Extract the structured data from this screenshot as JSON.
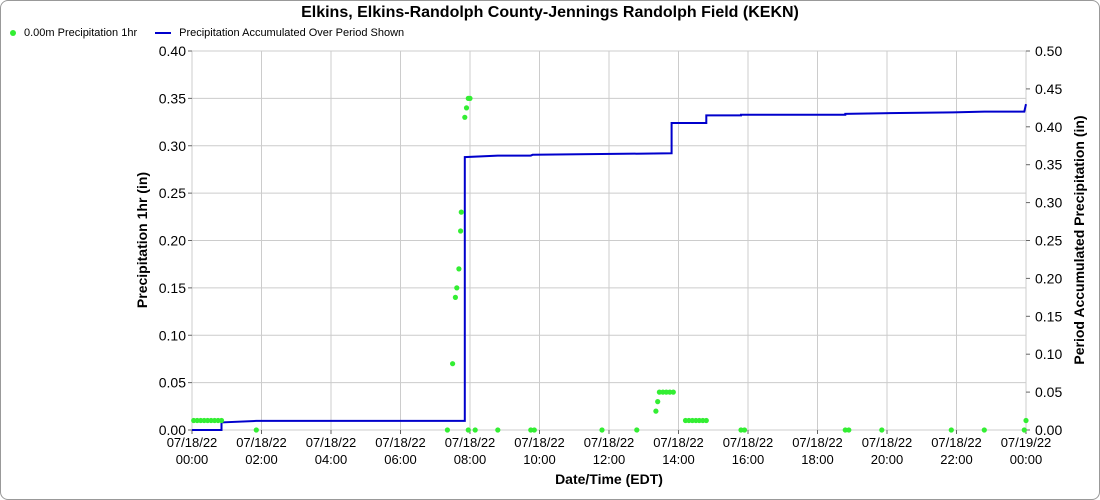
{
  "title": "Elkins, Elkins-Randolph County-Jennings Randolph Field (KEKN)",
  "legend": {
    "points_label": "0.00m Precipitation 1hr",
    "line_label": "Precipitation Accumulated Over Period Shown"
  },
  "colors": {
    "points": "#33ee33",
    "line": "#0000cc",
    "grid": "#cccccc"
  },
  "chart_data": {
    "type": "scatter",
    "title": "Elkins, Elkins-Randolph County-Jennings Randolph Field (KEKN)",
    "xlabel": "Date/Time (EDT)",
    "ylabel": "Precipitation 1hr (in)",
    "y2label": "Period Accumulated Precipitation (in)",
    "x_unit": "hours since 07/18/22 00:00",
    "xlim": [
      0,
      24
    ],
    "ylim": [
      0,
      0.4
    ],
    "y2lim": [
      0,
      0.5
    ],
    "grid": true,
    "legend_position": "top-left",
    "x_ticks": [
      {
        "v": 0,
        "l1": "07/18/22",
        "l2": "00:00"
      },
      {
        "v": 2,
        "l1": "07/18/22",
        "l2": "02:00"
      },
      {
        "v": 4,
        "l1": "07/18/22",
        "l2": "04:00"
      },
      {
        "v": 6,
        "l1": "07/18/22",
        "l2": "06:00"
      },
      {
        "v": 8,
        "l1": "07/18/22",
        "l2": "08:00"
      },
      {
        "v": 10,
        "l1": "07/18/22",
        "l2": "10:00"
      },
      {
        "v": 12,
        "l1": "07/18/22",
        "l2": "12:00"
      },
      {
        "v": 14,
        "l1": "07/18/22",
        "l2": "14:00"
      },
      {
        "v": 16,
        "l1": "07/18/22",
        "l2": "16:00"
      },
      {
        "v": 18,
        "l1": "07/18/22",
        "l2": "18:00"
      },
      {
        "v": 20,
        "l1": "07/18/22",
        "l2": "20:00"
      },
      {
        "v": 22,
        "l1": "07/18/22",
        "l2": "22:00"
      },
      {
        "v": 24,
        "l1": "07/19/22",
        "l2": "00:00"
      }
    ],
    "y_ticks": [
      "0.00",
      "0.05",
      "0.10",
      "0.15",
      "0.20",
      "0.25",
      "0.30",
      "0.35",
      "0.40"
    ],
    "y2_ticks": [
      "0.00",
      "0.05",
      "0.10",
      "0.15",
      "0.20",
      "0.25",
      "0.30",
      "0.35",
      "0.40",
      "0.45",
      "0.50"
    ],
    "series": [
      {
        "name": "0.00m Precipitation 1hr",
        "kind": "points",
        "points": [
          [
            0.05,
            0.01
          ],
          [
            0.15,
            0.01
          ],
          [
            0.25,
            0.01
          ],
          [
            0.35,
            0.01
          ],
          [
            0.45,
            0.01
          ],
          [
            0.55,
            0.01
          ],
          [
            0.65,
            0.01
          ],
          [
            0.75,
            0.01
          ],
          [
            0.85,
            0.01
          ],
          [
            1.85,
            0.0
          ],
          [
            7.35,
            0.0
          ],
          [
            7.5,
            0.07
          ],
          [
            7.58,
            0.14
          ],
          [
            7.62,
            0.15
          ],
          [
            7.68,
            0.17
          ],
          [
            7.73,
            0.21
          ],
          [
            7.75,
            0.23
          ],
          [
            7.85,
            0.33
          ],
          [
            7.9,
            0.34
          ],
          [
            7.95,
            0.35
          ],
          [
            8.0,
            0.35
          ],
          [
            7.95,
            0.0
          ],
          [
            8.15,
            0.0
          ],
          [
            8.8,
            0.0
          ],
          [
            9.75,
            0.0
          ],
          [
            9.85,
            0.0
          ],
          [
            11.8,
            0.0
          ],
          [
            12.8,
            0.0
          ],
          [
            13.35,
            0.02
          ],
          [
            13.4,
            0.03
          ],
          [
            13.45,
            0.04
          ],
          [
            13.55,
            0.04
          ],
          [
            13.65,
            0.04
          ],
          [
            13.75,
            0.04
          ],
          [
            13.85,
            0.04
          ],
          [
            14.2,
            0.01
          ],
          [
            14.3,
            0.01
          ],
          [
            14.4,
            0.01
          ],
          [
            14.5,
            0.01
          ],
          [
            14.6,
            0.01
          ],
          [
            14.7,
            0.01
          ],
          [
            14.8,
            0.01
          ],
          [
            15.8,
            0.0
          ],
          [
            15.9,
            0.0
          ],
          [
            18.8,
            0.0
          ],
          [
            18.9,
            0.0
          ],
          [
            19.85,
            0.0
          ],
          [
            21.85,
            0.0
          ],
          [
            22.8,
            0.0
          ],
          [
            23.95,
            0.0
          ],
          [
            24.0,
            0.01
          ]
        ]
      },
      {
        "name": "Precipitation Accumulated Over Period Shown",
        "kind": "line",
        "axis": "y2",
        "points": [
          [
            0,
            0.0
          ],
          [
            0.85,
            0.0
          ],
          [
            0.85,
            0.01
          ],
          [
            1.85,
            0.012
          ],
          [
            7.85,
            0.012
          ],
          [
            7.85,
            0.36
          ],
          [
            8.8,
            0.362
          ],
          [
            9.75,
            0.362
          ],
          [
            9.8,
            0.363
          ],
          [
            13.8,
            0.365
          ],
          [
            13.8,
            0.405
          ],
          [
            14.8,
            0.405
          ],
          [
            14.8,
            0.415
          ],
          [
            15.8,
            0.415
          ],
          [
            15.8,
            0.416
          ],
          [
            18.8,
            0.416
          ],
          [
            18.8,
            0.417
          ],
          [
            19.9,
            0.418
          ],
          [
            21.9,
            0.419
          ],
          [
            22.8,
            0.42
          ],
          [
            23.95,
            0.42
          ],
          [
            24.0,
            0.43
          ]
        ]
      }
    ]
  }
}
